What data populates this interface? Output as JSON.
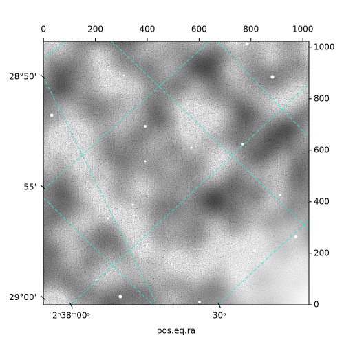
{
  "chart_data": {
    "type": "image",
    "xlabel": "pos.eq.ra",
    "xlim": [
      -0.5,
      1023.5
    ],
    "ylim": [
      -0.5,
      1023.5
    ],
    "xticks": [
      0,
      200,
      400,
      600,
      800,
      1000
    ],
    "yticks": [
      0,
      200,
      400,
      600,
      800,
      1000
    ],
    "ra_ticks": [
      {
        "value": 107,
        "label": "2ʰ38ᵐ00ˢ"
      },
      {
        "value": 678,
        "label": "30ˢ"
      }
    ],
    "dec_ticks": [
      {
        "value": 885,
        "label": "28°50'"
      },
      {
        "value": 456,
        "label": "55'"
      },
      {
        "value": 27,
        "label": "29°00'"
      }
    ],
    "grid_color": "#40e0d0"
  }
}
